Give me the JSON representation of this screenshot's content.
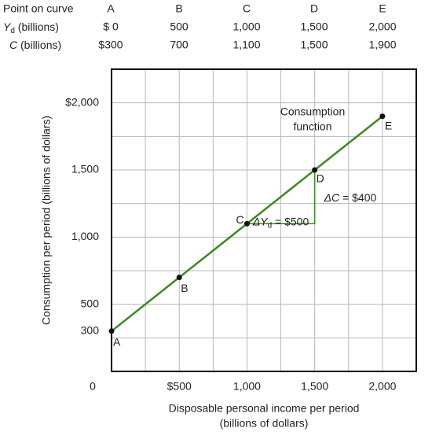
{
  "table": {
    "header": {
      "label": "Point on curve",
      "cells": [
        "A",
        "B",
        "C",
        "D",
        "E"
      ]
    },
    "rows": [
      {
        "label": {
          "main": "Y",
          "sub": "d",
          "rest": " (billions)"
        },
        "cells": [
          "$ 0",
          "500",
          "1,000",
          "1,500",
          "2,000"
        ]
      },
      {
        "label": {
          "main": "C",
          "rest": " (billions)"
        },
        "cells": [
          "$300",
          "700",
          "1,100",
          "1,500",
          "1,900"
        ]
      }
    ]
  },
  "chart_data": {
    "type": "line",
    "x": [
      0,
      500,
      1000,
      1500,
      2000
    ],
    "series": [
      {
        "name": "Consumption function",
        "color": "#3b8a1f",
        "values": [
          300,
          700,
          1100,
          1500,
          1900
        ]
      }
    ],
    "point_labels": [
      "A",
      "B",
      "C",
      "D",
      "E"
    ],
    "series_label": [
      "Consumption",
      "function"
    ],
    "delta_c_label": {
      "main": "ΔC",
      "rest": " = $400"
    },
    "delta_y_label": {
      "main": "ΔY",
      "sub": "d",
      "rest": " = $500"
    },
    "x_label": [
      "Disposable personal income per period",
      "(billions of dollars)"
    ],
    "y_label": "Consumption per period (billions of dollars)",
    "origin_label": "0",
    "xlim": [
      0,
      2250
    ],
    "ylim": [
      0,
      2250
    ],
    "xticks": [
      {
        "value": 500,
        "label": "$500"
      },
      {
        "value": 1000,
        "label": "1,000"
      },
      {
        "value": 1500,
        "label": "1,500"
      },
      {
        "value": 2000,
        "label": "2,000"
      }
    ],
    "yticks": [
      300,
      500,
      {
        "value": 1000,
        "label": "1,000"
      },
      {
        "value": 1500,
        "label": "1,500"
      },
      {
        "value": 2000,
        "label": "$2,000"
      }
    ],
    "xgrid": [
      250,
      500,
      750,
      1000,
      1250,
      1500,
      1750,
      2000
    ],
    "ygrid": [
      250,
      500,
      750,
      1000,
      1250,
      1500,
      1750,
      2000
    ],
    "grid": true
  }
}
